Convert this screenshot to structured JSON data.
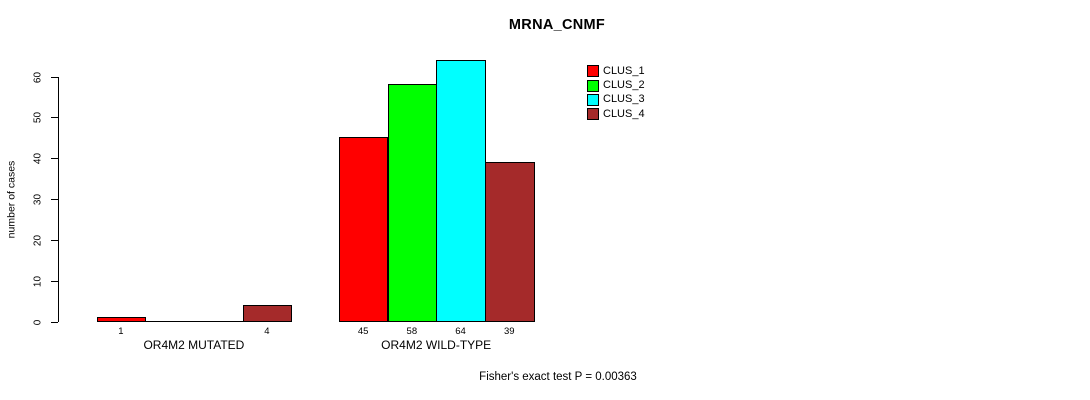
{
  "title": "MRNA_CNMF",
  "y_axis": {
    "label": "number of cases"
  },
  "footer": "Fisher's exact test P = 0.00363",
  "legend": {
    "items": [
      {
        "label": "CLUS_1",
        "color": "#FF0000"
      },
      {
        "label": "CLUS_2",
        "color": "#00FF00"
      },
      {
        "label": "CLUS_3",
        "color": "#00FFFF"
      },
      {
        "label": "CLUS_4",
        "color": "#A52A2A"
      }
    ]
  },
  "chart_data": {
    "type": "bar",
    "title": "MRNA_CNMF",
    "xlabel": "",
    "ylabel": "number of cases",
    "ylim": [
      0,
      60
    ],
    "yticks": [
      0,
      10,
      20,
      30,
      40,
      50,
      60
    ],
    "categories": [
      "OR4M2 MUTATED",
      "OR4M2 WILD-TYPE"
    ],
    "series": [
      {
        "name": "CLUS_1",
        "color": "#FF0000",
        "values": [
          1,
          45
        ]
      },
      {
        "name": "CLUS_2",
        "color": "#00FF00",
        "values": [
          0,
          58
        ]
      },
      {
        "name": "CLUS_3",
        "color": "#00FFFF",
        "values": [
          0,
          64
        ]
      },
      {
        "name": "CLUS_4",
        "color": "#A52A2A",
        "values": [
          4,
          39
        ]
      }
    ],
    "bar_value_labels": [
      [
        "1",
        "",
        "",
        "4"
      ],
      [
        "45",
        "58",
        "64",
        "39"
      ]
    ],
    "annotation": "Fisher's exact test P = 0.00363",
    "legend_position": "top-right",
    "grid": false,
    "bar_border_color": "#000000",
    "background": "#ffffff"
  }
}
